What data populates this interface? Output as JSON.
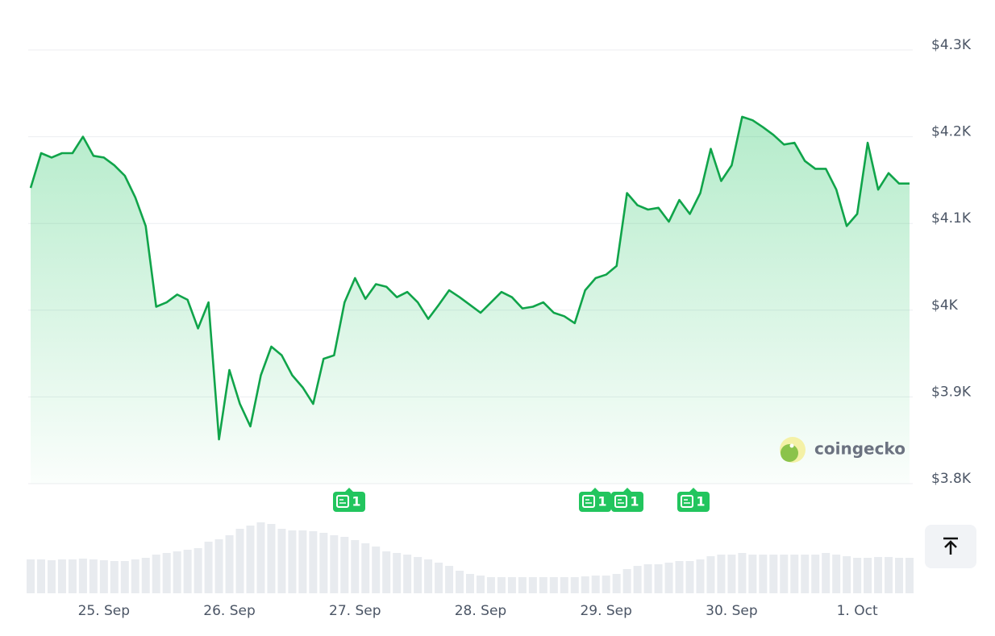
{
  "chart_data": {
    "type": "line",
    "color": "#10a44a",
    "categories": [
      null,
      null,
      null,
      null,
      null,
      null,
      null,
      "25. Sep",
      null,
      null,
      null,
      null,
      null,
      null,
      null,
      null,
      null,
      null,
      null,
      "26. Sep",
      null,
      null,
      null,
      null,
      null,
      null,
      null,
      null,
      null,
      null,
      null,
      "27. Sep",
      null,
      null,
      null,
      null,
      null,
      null,
      null,
      null,
      null,
      null,
      null,
      "28. Sep",
      null,
      null,
      null,
      null,
      null,
      null,
      null,
      null,
      null,
      null,
      null,
      "29. Sep",
      null,
      null,
      null,
      null,
      null,
      null,
      null,
      null,
      null,
      null,
      null,
      "30. Sep",
      null,
      null,
      null,
      null,
      null,
      null,
      null,
      null,
      null,
      null,
      null,
      "1. Oct",
      null,
      null,
      null,
      null,
      null
    ],
    "values": [
      4141,
      4181,
      4176,
      4181,
      4181,
      4200,
      4178,
      4176,
      4167,
      4155,
      4130,
      4097,
      4004,
      4009,
      4018,
      4012,
      3979,
      4009,
      3851,
      3931,
      3892,
      3866,
      3925,
      3958,
      3948,
      3925,
      3911,
      3892,
      3944,
      3948,
      4009,
      4037,
      4013,
      4030,
      4027,
      4015,
      4021,
      4009,
      3990,
      4006,
      4023,
      4015,
      4006,
      3997,
      4009,
      4021,
      4015,
      4002,
      4004,
      4009,
      3997,
      3993,
      3985,
      4023,
      4037,
      4041,
      4051,
      4135,
      4121,
      4116,
      4118,
      4102,
      4127,
      4111,
      4135,
      4186,
      4149,
      4167,
      4223,
      4219,
      4211,
      4202,
      4191,
      4193,
      4172,
      4163,
      4163,
      4139,
      4097,
      4111,
      4193,
      4139,
      4158,
      4146,
      4146
    ],
    "ylim": [
      3800,
      4300
    ],
    "yticks": [
      {
        "value": 4300,
        "label": "$4.3K"
      },
      {
        "value": 4200,
        "label": "$4.2K"
      },
      {
        "value": 4100,
        "label": "$4.1K"
      },
      {
        "value": 4000,
        "label": "$4K"
      },
      {
        "value": 3900,
        "label": "$3.9K"
      },
      {
        "value": 3800,
        "label": "$3.8K"
      }
    ],
    "grid": true,
    "volume": {
      "color": "#e8ebef",
      "lim": [
        0,
        100
      ],
      "values": [
        42,
        42,
        41,
        42,
        42,
        43,
        42,
        41,
        40,
        40,
        42,
        44,
        48,
        50,
        52,
        54,
        56,
        64,
        67,
        72,
        80,
        84,
        88,
        86,
        80,
        78,
        78,
        77,
        75,
        72,
        70,
        66,
        62,
        58,
        52,
        50,
        48,
        45,
        42,
        38,
        34,
        28,
        24,
        22,
        20,
        20,
        20,
        20,
        20,
        20,
        20,
        20,
        20,
        21,
        22,
        22,
        24,
        30,
        34,
        36,
        36,
        38,
        40,
        40,
        42,
        46,
        48,
        48,
        50,
        48,
        48,
        48,
        48,
        48,
        48,
        48,
        50,
        48,
        46,
        44,
        44,
        45,
        45,
        44,
        44
      ]
    },
    "news_counts": [
      1,
      1,
      1,
      1
    ],
    "watermark": "coingecko"
  }
}
